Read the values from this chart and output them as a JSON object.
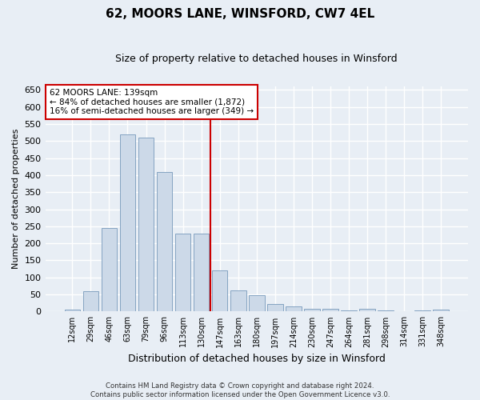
{
  "title": "62, MOORS LANE, WINSFORD, CW7 4EL",
  "subtitle": "Size of property relative to detached houses in Winsford",
  "xlabel": "Distribution of detached houses by size in Winsford",
  "ylabel": "Number of detached properties",
  "footer_line1": "Contains HM Land Registry data © Crown copyright and database right 2024.",
  "footer_line2": "Contains public sector information licensed under the Open Government Licence v3.0.",
  "bar_labels": [
    "12sqm",
    "29sqm",
    "46sqm",
    "63sqm",
    "79sqm",
    "96sqm",
    "113sqm",
    "130sqm",
    "147sqm",
    "163sqm",
    "180sqm",
    "197sqm",
    "214sqm",
    "230sqm",
    "247sqm",
    "264sqm",
    "281sqm",
    "298sqm",
    "314sqm",
    "331sqm",
    "348sqm"
  ],
  "bar_values": [
    5,
    60,
    245,
    520,
    510,
    410,
    228,
    228,
    120,
    63,
    47,
    22,
    14,
    9,
    9,
    3,
    9,
    3,
    0,
    4,
    6
  ],
  "bar_color": "#ccd9e8",
  "bar_edge_color": "#7799bb",
  "vline_x": 8.0,
  "vline_color": "#cc0000",
  "annotation_title": "62 MOORS LANE: 139sqm",
  "annotation_line1": "← 84% of detached houses are smaller (1,872)",
  "annotation_line2": "16% of semi-detached houses are larger (349) →",
  "annotation_box_color": "#ffffff",
  "annotation_box_edge": "#cc0000",
  "ylim": [
    0,
    660
  ],
  "yticks": [
    0,
    50,
    100,
    150,
    200,
    250,
    300,
    350,
    400,
    450,
    500,
    550,
    600,
    650
  ],
  "bg_color": "#e8eef5",
  "axes_bg_color": "#e8eef5",
  "grid_color": "#ffffff"
}
